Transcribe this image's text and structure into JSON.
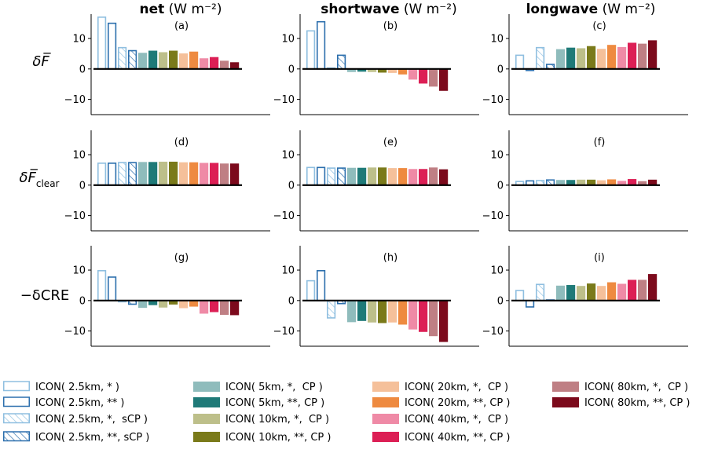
{
  "columns": [
    {
      "title_bold": "net",
      "unit": "(W m⁻²)"
    },
    {
      "title_bold": "shortwave",
      "unit": "(W m⁻²)"
    },
    {
      "title_bold": "longwave",
      "unit": "(W m⁻²)"
    }
  ],
  "rows": [
    {
      "label_main": "δF̅",
      "label_sub": ""
    },
    {
      "label_main": "δF̅",
      "label_sub": "clear"
    },
    {
      "label_main": "−δCRE",
      "label_sub": ""
    }
  ],
  "panel_labels": [
    "(a)",
    "(b)",
    "(c)",
    "(d)",
    "(e)",
    "(f)",
    "(g)",
    "(h)",
    "(i)"
  ],
  "chart_data": {
    "type": "bar",
    "ylim": [
      -15,
      18
    ],
    "yticks": [
      -10,
      0,
      10
    ],
    "categories": [
      "ICON( 2.5km, * )",
      "ICON( 2.5km, ** )",
      "ICON( 2.5km, *,  sCP )",
      "ICON( 2.5km, **, sCP )",
      "ICON( 5km, *,  CP )",
      "ICON( 5km, **, CP )",
      "ICON( 10km, *,  CP )",
      "ICON( 10km, **, CP )",
      "ICON( 20km, *,  CP )",
      "ICON( 20km, **, CP )",
      "ICON( 40km, *,  CP )",
      "ICON( 40km, **, CP )",
      "ICON( 80km, *,  CP )",
      "ICON( 80km, **, CP )"
    ],
    "styles": [
      {
        "color": "#8fbfe0",
        "fill": "none"
      },
      {
        "color": "#2c6fad",
        "fill": "none"
      },
      {
        "color": "#8fbfe0",
        "fill": "hatch"
      },
      {
        "color": "#2c6fad",
        "fill": "hatch"
      },
      {
        "color": "#8fbcbc",
        "fill": "solid"
      },
      {
        "color": "#1f7a78",
        "fill": "solid"
      },
      {
        "color": "#bdbf8a",
        "fill": "solid"
      },
      {
        "color": "#7a7a1a",
        "fill": "solid"
      },
      {
        "color": "#f5c09a",
        "fill": "solid"
      },
      {
        "color": "#ee8a40",
        "fill": "solid"
      },
      {
        "color": "#ef8aa6",
        "fill": "solid"
      },
      {
        "color": "#dc1f55",
        "fill": "solid"
      },
      {
        "color": "#bf7f84",
        "fill": "solid"
      },
      {
        "color": "#7c0a1c",
        "fill": "solid"
      }
    ],
    "panels": [
      {
        "values": [
          17.0,
          15.0,
          7.0,
          6.0,
          5.3,
          6.0,
          5.5,
          6.0,
          5.1,
          5.7,
          3.5,
          3.9,
          2.7,
          2.2
        ]
      },
      {
        "values": [
          12.5,
          15.5,
          0.3,
          4.5,
          -1.0,
          -0.9,
          -1.0,
          -1.2,
          -1.3,
          -1.8,
          -3.5,
          -4.8,
          -5.8,
          -7.2
        ]
      },
      {
        "values": [
          4.5,
          -0.5,
          7.0,
          1.5,
          6.5,
          7.0,
          6.8,
          7.5,
          6.6,
          7.9,
          7.2,
          8.6,
          8.3,
          9.4
        ]
      },
      {
        "values": [
          7.2,
          7.2,
          7.4,
          7.4,
          7.6,
          7.6,
          7.7,
          7.7,
          7.5,
          7.5,
          7.3,
          7.3,
          7.1,
          7.1
        ]
      },
      {
        "values": [
          5.8,
          5.8,
          5.6,
          5.6,
          5.7,
          5.7,
          5.8,
          5.8,
          5.6,
          5.6,
          5.3,
          5.3,
          5.8,
          5.2
        ]
      },
      {
        "values": [
          1.2,
          1.4,
          1.5,
          1.7,
          1.7,
          1.7,
          1.8,
          1.8,
          1.6,
          1.9,
          1.4,
          2.0,
          1.3,
          1.8
        ]
      },
      {
        "values": [
          9.8,
          7.7,
          -0.4,
          -1.2,
          -2.4,
          -1.5,
          -2.3,
          -1.3,
          -2.5,
          -2.0,
          -4.3,
          -3.8,
          -4.7,
          -4.8
        ]
      },
      {
        "values": [
          6.5,
          9.8,
          -5.7,
          -1.0,
          -7.1,
          -6.7,
          -7.2,
          -7.4,
          -7.2,
          -7.9,
          -9.5,
          -10.3,
          -11.7,
          -13.6
        ]
      },
      {
        "values": [
          3.3,
          -2.1,
          5.3,
          0.2,
          4.9,
          5.1,
          4.8,
          5.6,
          4.8,
          6.0,
          5.5,
          6.8,
          6.8,
          8.7
        ]
      }
    ]
  }
}
